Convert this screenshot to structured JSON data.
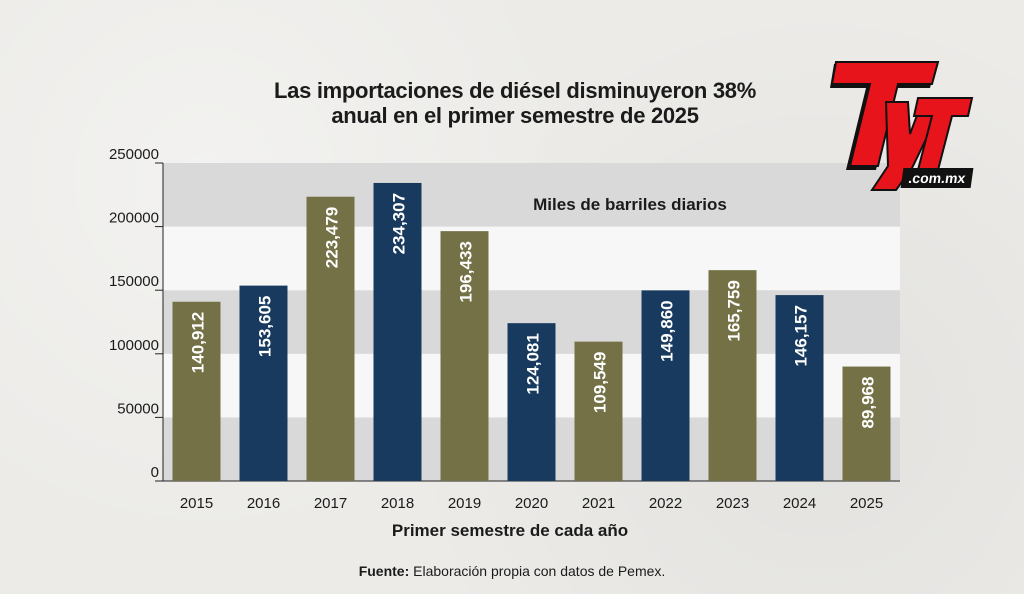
{
  "chart_data": {
    "type": "bar",
    "title_lines": [
      "Las importaciones de diésel disminuyeron 38%",
      "anual en el primer semestre de 2025"
    ],
    "annotation": "Miles de barriles diarios",
    "xlabel": "Primer semestre de cada año",
    "ylabel": "",
    "categories": [
      "2015",
      "2016",
      "2017",
      "2018",
      "2019",
      "2020",
      "2021",
      "2022",
      "2023",
      "2024",
      "2025"
    ],
    "values": [
      140912,
      153605,
      223479,
      234307,
      196433,
      124081,
      109549,
      149860,
      165759,
      146157,
      89968
    ],
    "value_labels": [
      "140,912",
      "153,605",
      "223,479",
      "234,307",
      "196,433",
      "124,081",
      "109,549",
      "149,860",
      "165,759",
      "146,157",
      "89,968"
    ],
    "bar_colors": [
      "#747146",
      "#173a5e",
      "#747146",
      "#173a5e",
      "#747146",
      "#173a5e",
      "#747146",
      "#173a5e",
      "#747146",
      "#173a5e",
      "#747146"
    ],
    "ylim": [
      0,
      250000
    ],
    "yticks": [
      0,
      50000,
      100000,
      150000,
      200000,
      250000
    ],
    "ytick_labels": [
      "0",
      "50000",
      "100000",
      "150000",
      "200000",
      "250000"
    ],
    "grid": "alternating bands",
    "band_colors": [
      "#d9d9d9",
      "#f7f7f7"
    ]
  },
  "source": {
    "label": "Fuente:",
    "text": " Elaboración propia con datos de Pemex."
  },
  "logo": {
    "letters": "TyT",
    "domain": ".com.mx",
    "red": "#e8141c",
    "dark": "#111111"
  }
}
